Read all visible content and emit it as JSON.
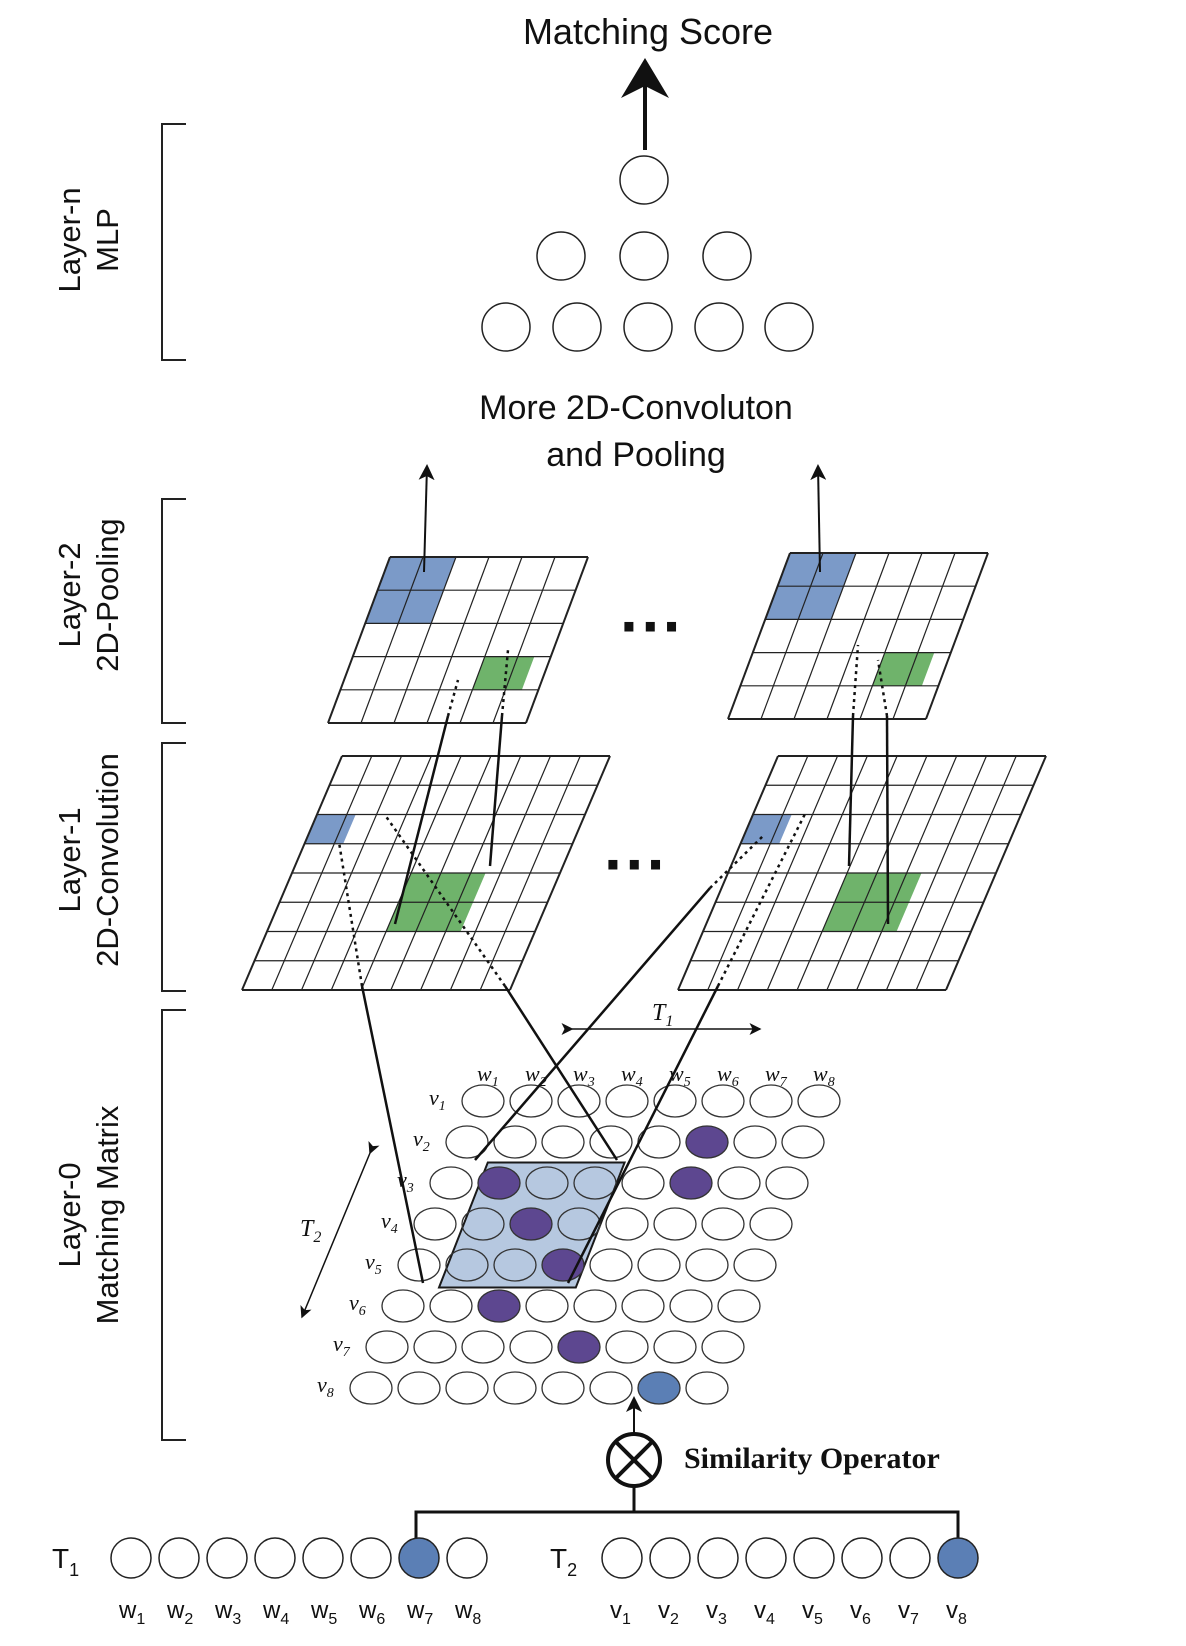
{
  "title": "Matching Score",
  "more_layers": {
    "line1": "More 2D-Convoluton",
    "line2": "and Pooling"
  },
  "dots": "···",
  "layers": [
    {
      "line1": "Layer-n",
      "line2": "MLP"
    },
    {
      "line1": "Layer-2",
      "line2": "2D-Pooling"
    },
    {
      "line1": "Layer-1",
      "line2": "2D-Convolution"
    },
    {
      "line1": "Layer-0",
      "line2": "Matching Matrix"
    }
  ],
  "similarity_operator": "Similarity Operator",
  "t1_label": {
    "base": "T",
    "sub": "1"
  },
  "t2_label": {
    "base": "T",
    "sub": "2"
  },
  "t1_words": [
    {
      "b": "w",
      "s": "1"
    },
    {
      "b": "w",
      "s": "2"
    },
    {
      "b": "w",
      "s": "3"
    },
    {
      "b": "w",
      "s": "4"
    },
    {
      "b": "w",
      "s": "5"
    },
    {
      "b": "w",
      "s": "6"
    },
    {
      "b": "w",
      "s": "7"
    },
    {
      "b": "w",
      "s": "8"
    }
  ],
  "t2_words": [
    {
      "b": "v",
      "s": "1"
    },
    {
      "b": "v",
      "s": "2"
    },
    {
      "b": "v",
      "s": "3"
    },
    {
      "b": "v",
      "s": "4"
    },
    {
      "b": "v",
      "s": "5"
    },
    {
      "b": "v",
      "s": "6"
    },
    {
      "b": "v",
      "s": "7"
    },
    {
      "b": "v",
      "s": "8"
    }
  ],
  "colors": {
    "blue": "#7b9ac8",
    "steel_blue": "#5b7fb5",
    "green": "#6fb36b",
    "purple": "#5d4790",
    "window": "#a9bedb"
  },
  "highlighted_t1_word_index": 6,
  "highlighted_t2_word_index": 7,
  "matrix_matches": [
    [
      1,
      5
    ],
    [
      2,
      1
    ],
    [
      2,
      5
    ],
    [
      3,
      2
    ],
    [
      4,
      3
    ],
    [
      5,
      2
    ],
    [
      6,
      4
    ],
    [
      7,
      6
    ]
  ]
}
